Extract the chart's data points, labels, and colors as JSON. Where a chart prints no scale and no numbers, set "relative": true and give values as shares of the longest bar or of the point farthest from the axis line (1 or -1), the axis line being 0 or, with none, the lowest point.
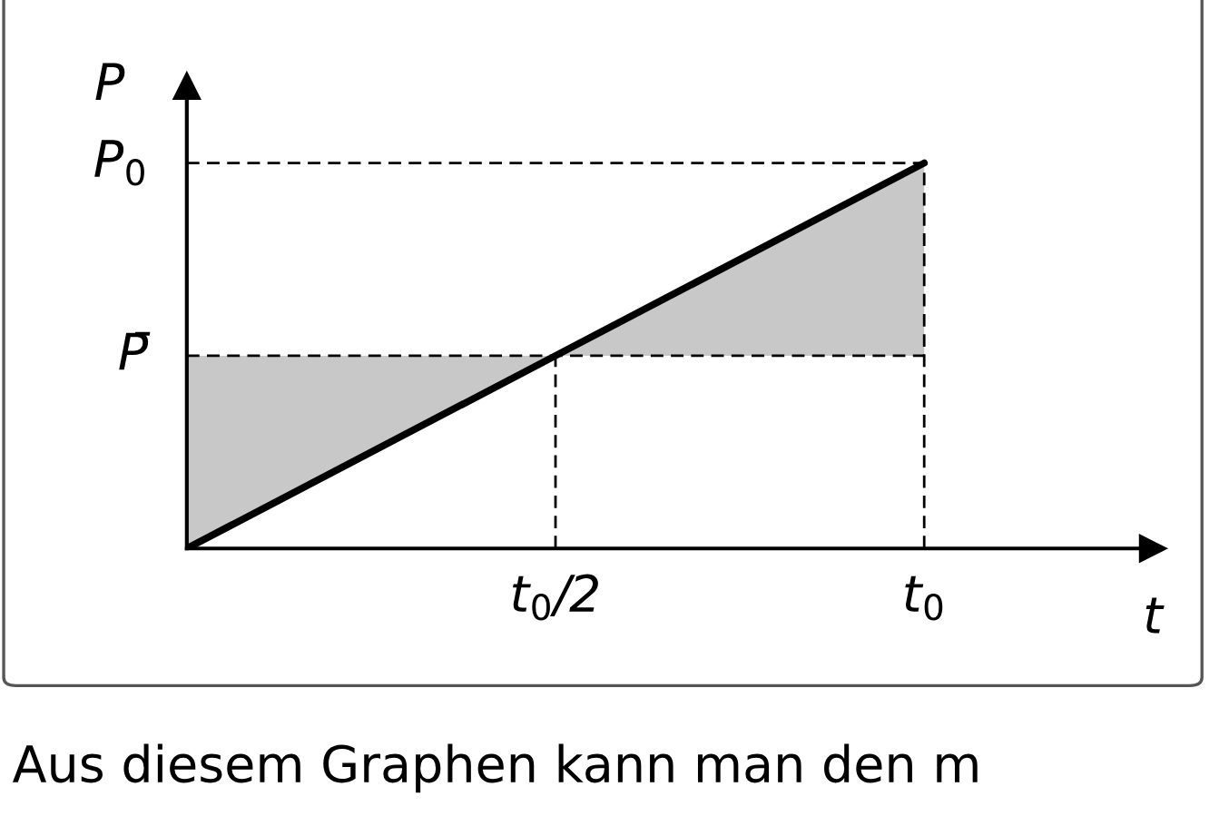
{
  "chart_data": {
    "type": "line",
    "xlabel": "t",
    "ylabel": "P",
    "relative": true,
    "categories": [
      null,
      "t$_{0}$/2",
      "t$_{0}$"
    ],
    "series": [
      {
        "color": "#000000",
        "values": [
          0,
          0.5,
          1
        ],
        "lower": [
          0,
          0.5,
          0.5
        ],
        "upper": [
          0.5,
          0.5,
          1
        ]
      }
    ],
    "ref_lines": [
      {
        "axis": "y",
        "value": 1,
        "label": "P$_{0}$",
        "line_style": "dashed"
      },
      {
        "axis": "y",
        "value": 0.5,
        "label": "P̄",
        "line_style": "dashed"
      },
      {
        "axis": "x",
        "value": "t$_{0}$/2",
        "line_style": "dashed"
      },
      {
        "axis": "x",
        "value": "t$_{0}$",
        "line_style": "dashed"
      }
    ],
    "grid": false,
    "marker": "none",
    "line_style": "solid",
    "annotations": [
      "Aus diesem Graphen kann man den m"
    ]
  }
}
